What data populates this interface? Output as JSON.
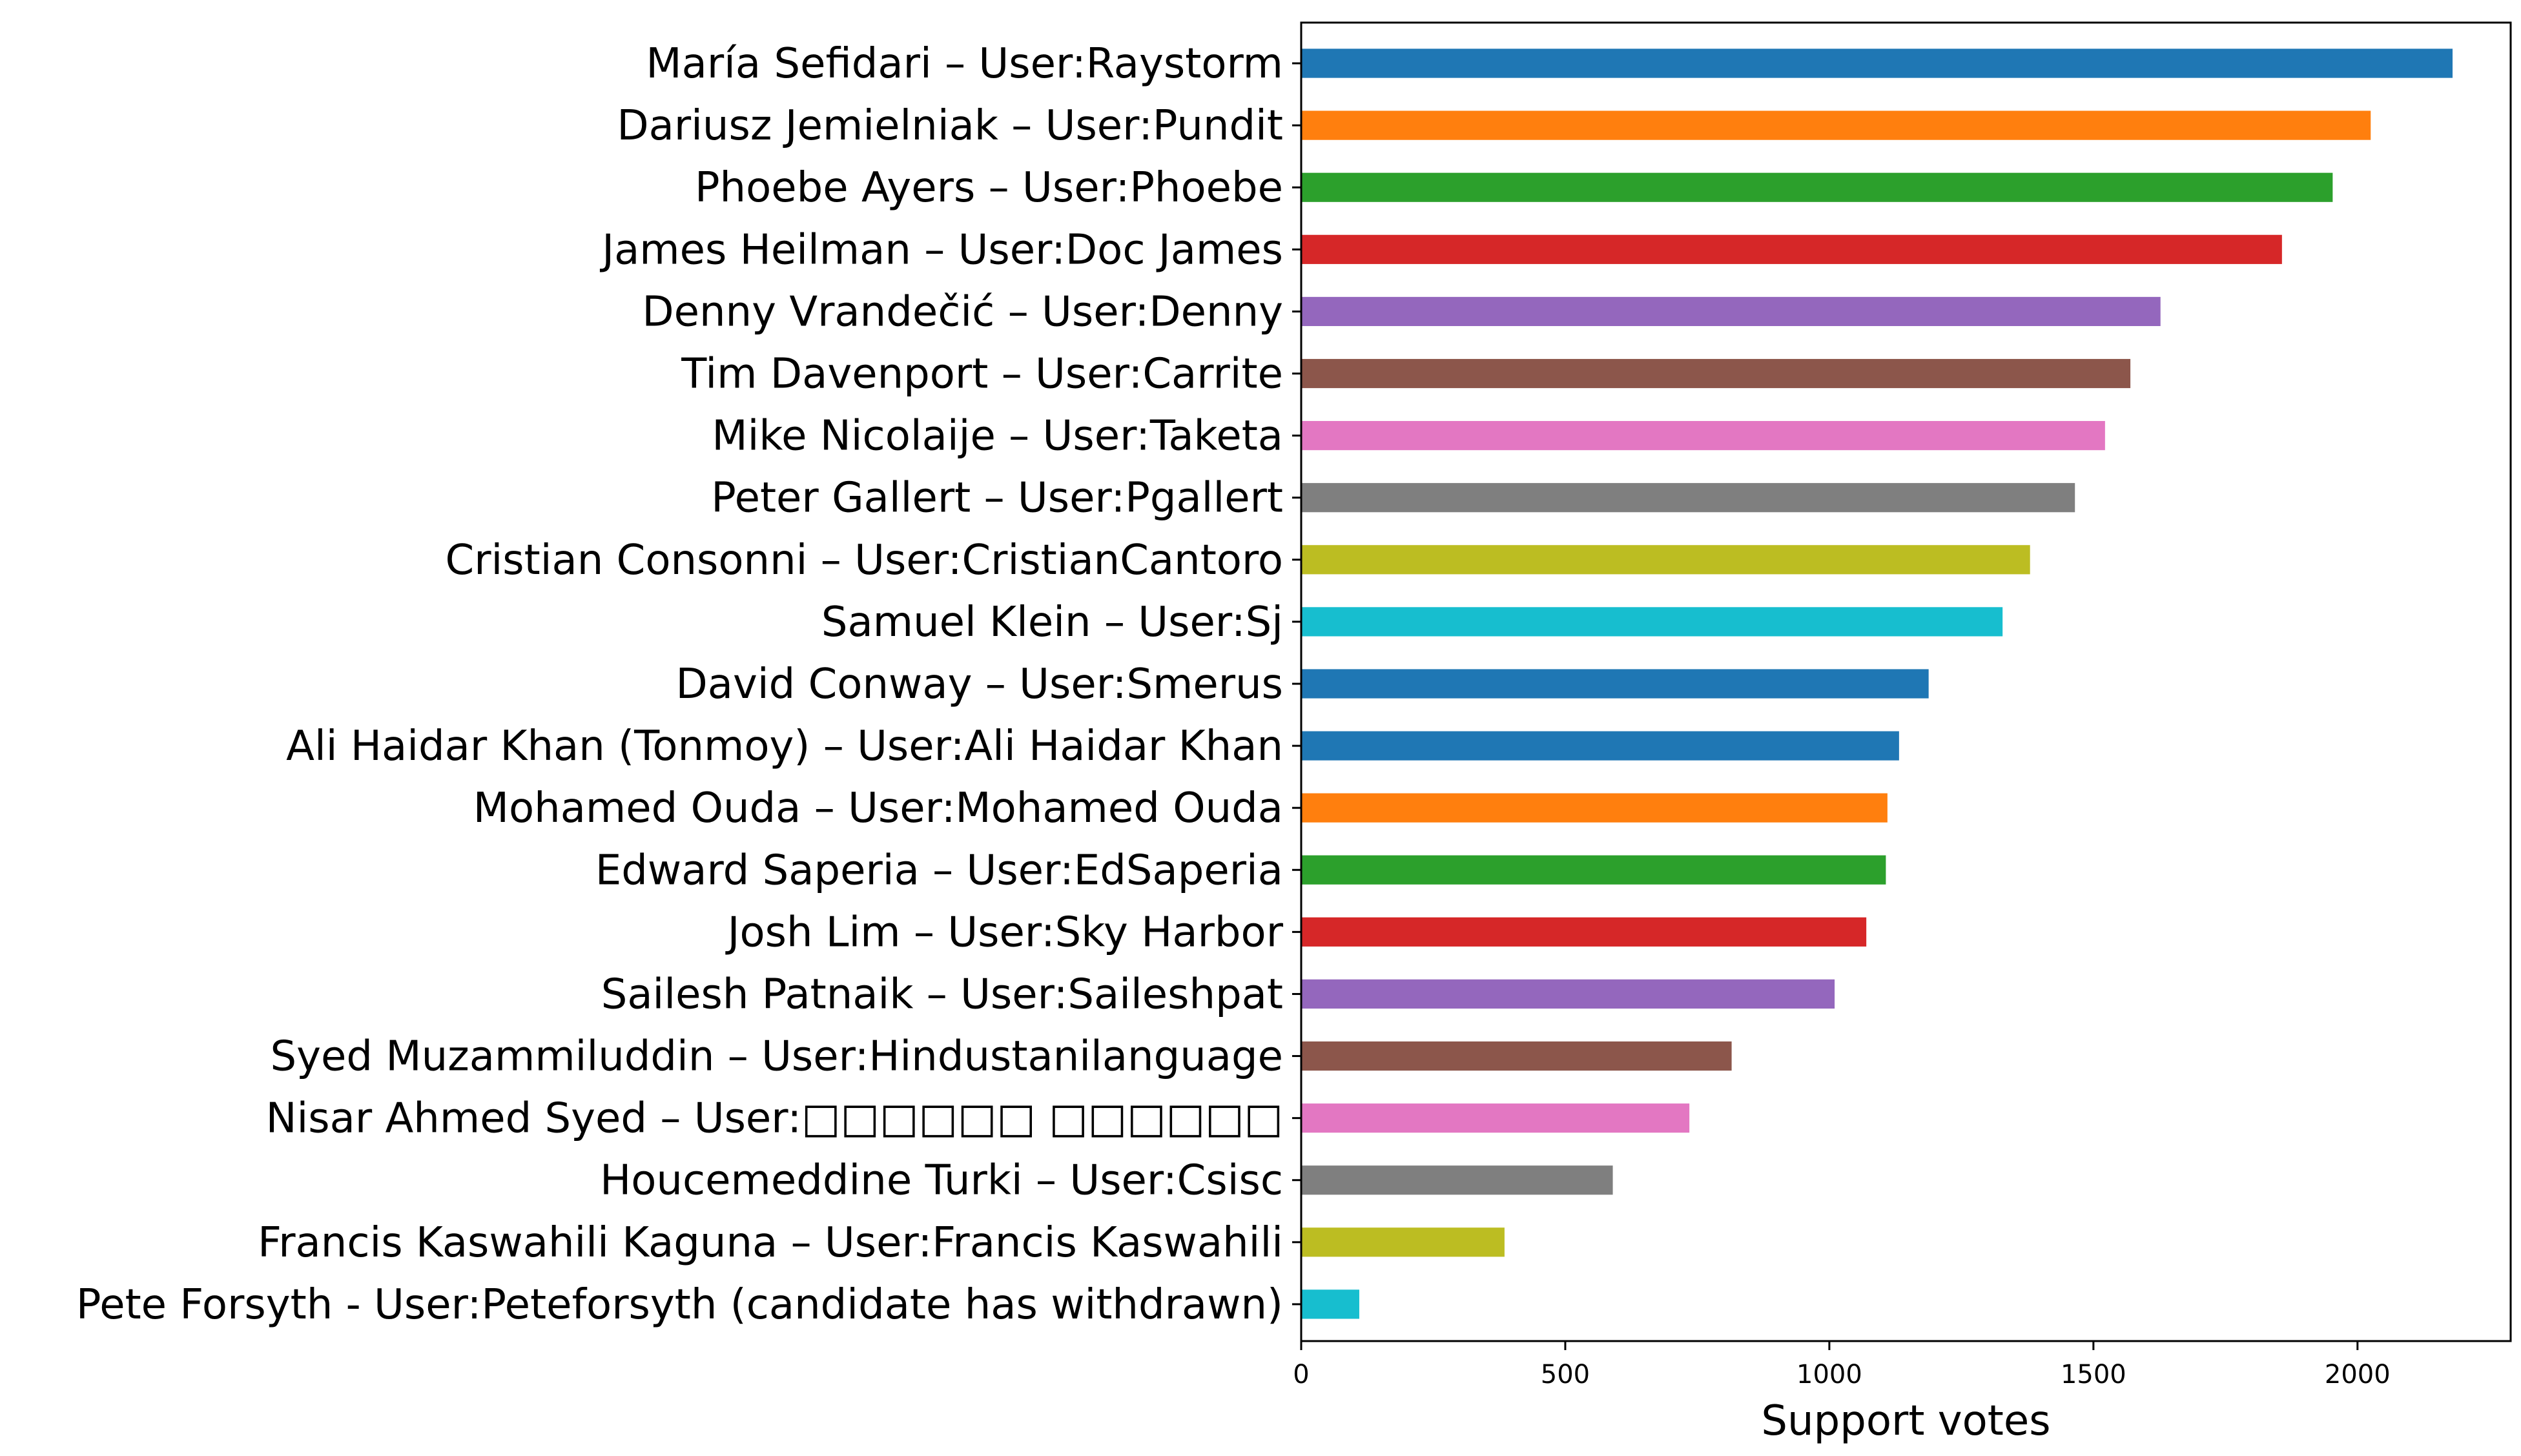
{
  "chart_data": {
    "type": "bar",
    "orientation": "horizontal",
    "title": "",
    "xlabel": "Support votes",
    "ylabel": "",
    "xlim": [
      0,
      2290
    ],
    "xticks": [
      0,
      500,
      1000,
      1500,
      2000
    ],
    "grid": false,
    "categories": [
      "María Sefidari – User:Raystorm",
      "Dariusz Jemielniak – User:Pundit",
      "Phoebe Ayers – User:Phoebe",
      "James Heilman – User:Doc James",
      "Denny Vrandečić – User:Denny",
      "Tim Davenport – User:Carrite",
      "Mike Nicolaije – User:Taketa",
      "Peter Gallert – User:Pgallert",
      "Cristian Consonni – User:CristianCantoro",
      "Samuel Klein – User:Sj",
      "David Conway – User:Smerus",
      "Ali Haidar Khan (Tonmoy) – User:Ali Haidar Khan",
      "Mohamed Ouda – User:Mohamed Ouda",
      "Edward Saperia – User:EdSaperia",
      "Josh Lim – User:Sky Harbor",
      "Sailesh Patnaik – User:Saileshpat",
      "Syed Muzammiluddin – User:Hindustanilanguage",
      "Nisar Ahmed Syed – User:□□□□□□ □□□□□□",
      "Houcemeddine Turki – User:Csisc",
      "Francis Kaswahili Kaguna – User:Francis Kaswahili",
      "Pete Forsyth - User:Peteforsyth (candidate has withdrawn)"
    ],
    "values": [
      2180,
      2025,
      1953,
      1857,
      1627,
      1570,
      1522,
      1465,
      1380,
      1328,
      1188,
      1132,
      1110,
      1107,
      1070,
      1010,
      815,
      735,
      590,
      385,
      110
    ],
    "colors": [
      "#1f77b4",
      "#ff7f0e",
      "#2ca02c",
      "#d62728",
      "#9467bd",
      "#8c564b",
      "#e377c2",
      "#7f7f7f",
      "#bcbd22",
      "#17becf",
      "#1f77b4",
      "#1f77b4",
      "#ff7f0e",
      "#2ca02c",
      "#d62728",
      "#9467bd",
      "#8c564b",
      "#e377c2",
      "#7f7f7f",
      "#bcbd22",
      "#17becf"
    ]
  }
}
